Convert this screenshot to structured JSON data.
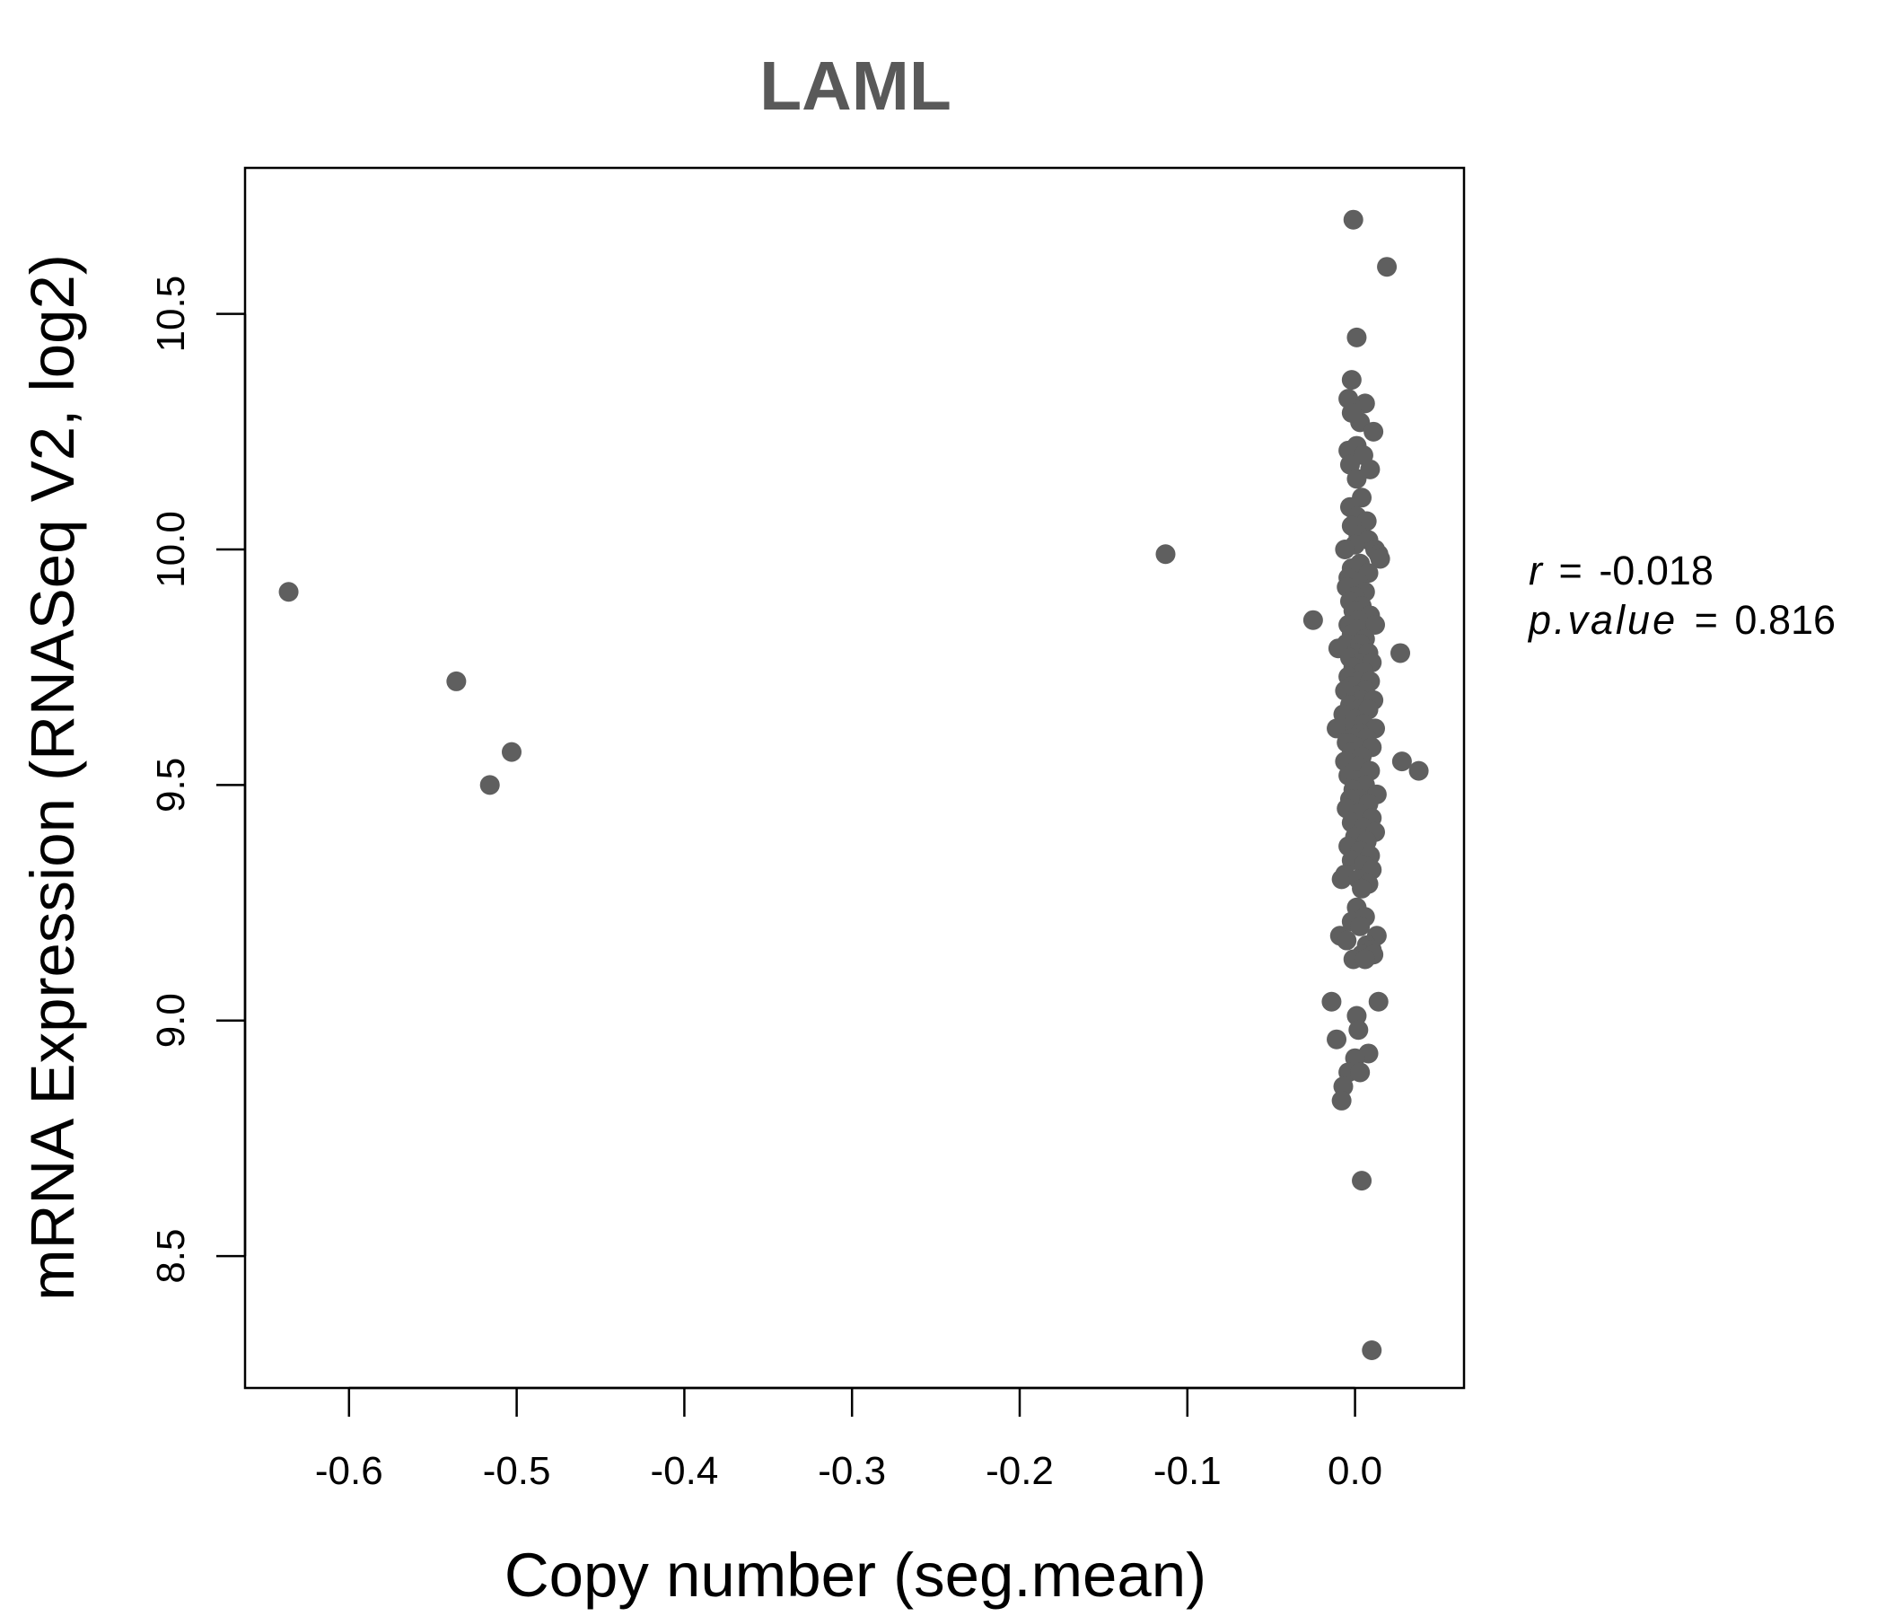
{
  "chart_data": {
    "type": "scatter",
    "title": "LAML",
    "xlabel": "Copy number (seg.mean)",
    "ylabel": "mRNA Expression (RNASeq V2, log2)",
    "xlim": [
      -0.662,
      0.065
    ],
    "ylim": [
      8.22,
      10.81
    ],
    "xticks": [
      -0.6,
      -0.5,
      -0.4,
      -0.3,
      -0.2,
      -0.1,
      0.0
    ],
    "xtick_labels": [
      "-0.6",
      "-0.5",
      "-0.4",
      "-0.3",
      "-0.2",
      "-0.1",
      "0.0"
    ],
    "yticks": [
      8.5,
      9.0,
      9.5,
      10.0,
      10.5
    ],
    "ytick_labels": [
      "8.5",
      "9.0",
      "9.5",
      "10.0",
      "10.5"
    ],
    "grid": false,
    "marker_color": "#5f5f5f",
    "points": [
      {
        "x": -0.636,
        "y": 9.91
      },
      {
        "x": -0.536,
        "y": 9.72
      },
      {
        "x": -0.516,
        "y": 9.5
      },
      {
        "x": -0.503,
        "y": 9.57
      },
      {
        "x": -0.113,
        "y": 9.99
      },
      {
        "x": -0.001,
        "y": 10.7
      },
      {
        "x": 0.019,
        "y": 10.6
      },
      {
        "x": 0.001,
        "y": 10.45
      },
      {
        "x": -0.002,
        "y": 10.36
      },
      {
        "x": -0.004,
        "y": 10.32
      },
      {
        "x": 0.006,
        "y": 10.31
      },
      {
        "x": -0.001,
        "y": 10.3
      },
      {
        "x": 0.003,
        "y": 10.27
      },
      {
        "x": 0.011,
        "y": 10.25
      },
      {
        "x": -0.002,
        "y": 10.29
      },
      {
        "x": 0.001,
        "y": 10.22
      },
      {
        "x": -0.004,
        "y": 10.21
      },
      {
        "x": 0.005,
        "y": 10.2
      },
      {
        "x": -0.003,
        "y": 10.18
      },
      {
        "x": 0.009,
        "y": 10.17
      },
      {
        "x": 0.001,
        "y": 10.15
      },
      {
        "x": 0.004,
        "y": 10.11
      },
      {
        "x": -0.003,
        "y": 10.09
      },
      {
        "x": 0.001,
        "y": 10.07
      },
      {
        "x": 0.007,
        "y": 10.06
      },
      {
        "x": -0.002,
        "y": 10.05
      },
      {
        "x": 0.002,
        "y": 10.03
      },
      {
        "x": 0.008,
        "y": 10.02
      },
      {
        "x": 0.0,
        "y": 10.01
      },
      {
        "x": -0.006,
        "y": 10.0
      },
      {
        "x": 0.012,
        "y": 10.0
      },
      {
        "x": 0.014,
        "y": 9.99
      },
      {
        "x": 0.015,
        "y": 9.98
      },
      {
        "x": 0.003,
        "y": 9.97
      },
      {
        "x": -0.002,
        "y": 9.96
      },
      {
        "x": 0.008,
        "y": 9.95
      },
      {
        "x": -0.004,
        "y": 9.94
      },
      {
        "x": 0.002,
        "y": 9.93
      },
      {
        "x": -0.005,
        "y": 9.92
      },
      {
        "x": 0.006,
        "y": 9.91
      },
      {
        "x": 0.0,
        "y": 9.9
      },
      {
        "x": -0.003,
        "y": 9.89
      },
      {
        "x": 0.004,
        "y": 9.88
      },
      {
        "x": -0.001,
        "y": 9.87
      },
      {
        "x": 0.009,
        "y": 9.86
      },
      {
        "x": -0.025,
        "y": 9.85
      },
      {
        "x": 0.002,
        "y": 9.85
      },
      {
        "x": -0.004,
        "y": 9.84
      },
      {
        "x": 0.012,
        "y": 9.84
      },
      {
        "x": 0.001,
        "y": 9.83
      },
      {
        "x": -0.002,
        "y": 9.82
      },
      {
        "x": 0.006,
        "y": 9.81
      },
      {
        "x": -0.005,
        "y": 9.8
      },
      {
        "x": 0.003,
        "y": 9.8
      },
      {
        "x": -0.01,
        "y": 9.79
      },
      {
        "x": 0.001,
        "y": 9.78
      },
      {
        "x": 0.008,
        "y": 9.78
      },
      {
        "x": 0.027,
        "y": 9.78
      },
      {
        "x": -0.003,
        "y": 9.77
      },
      {
        "x": 0.004,
        "y": 9.76
      },
      {
        "x": 0.01,
        "y": 9.76
      },
      {
        "x": -0.001,
        "y": 9.75
      },
      {
        "x": 0.005,
        "y": 9.74
      },
      {
        "x": -0.004,
        "y": 9.73
      },
      {
        "x": 0.002,
        "y": 9.72
      },
      {
        "x": 0.009,
        "y": 9.72
      },
      {
        "x": -0.002,
        "y": 9.71
      },
      {
        "x": 0.006,
        "y": 9.7
      },
      {
        "x": -0.006,
        "y": 9.7
      },
      {
        "x": 0.001,
        "y": 9.69
      },
      {
        "x": 0.004,
        "y": 9.68
      },
      {
        "x": 0.011,
        "y": 9.68
      },
      {
        "x": -0.003,
        "y": 9.67
      },
      {
        "x": 0.002,
        "y": 9.66
      },
      {
        "x": 0.008,
        "y": 9.66
      },
      {
        "x": -0.007,
        "y": 9.65
      },
      {
        "x": 0.0,
        "y": 9.64
      },
      {
        "x": 0.005,
        "y": 9.63
      },
      {
        "x": -0.004,
        "y": 9.62
      },
      {
        "x": 0.012,
        "y": 9.62
      },
      {
        "x": -0.011,
        "y": 9.62
      },
      {
        "x": 0.003,
        "y": 9.61
      },
      {
        "x": -0.001,
        "y": 9.6
      },
      {
        "x": 0.007,
        "y": 9.6
      },
      {
        "x": -0.005,
        "y": 9.59
      },
      {
        "x": 0.001,
        "y": 9.58
      },
      {
        "x": 0.01,
        "y": 9.58
      },
      {
        "x": -0.002,
        "y": 9.57
      },
      {
        "x": 0.004,
        "y": 9.56
      },
      {
        "x": 0.028,
        "y": 9.55
      },
      {
        "x": -0.006,
        "y": 9.55
      },
      {
        "x": 0.002,
        "y": 9.54
      },
      {
        "x": 0.009,
        "y": 9.53
      },
      {
        "x": 0.038,
        "y": 9.53
      },
      {
        "x": -0.004,
        "y": 9.52
      },
      {
        "x": 0.001,
        "y": 9.51
      },
      {
        "x": 0.006,
        "y": 9.5
      },
      {
        "x": -0.001,
        "y": 9.49
      },
      {
        "x": 0.013,
        "y": 9.48
      },
      {
        "x": 0.003,
        "y": 9.47
      },
      {
        "x": -0.003,
        "y": 9.47
      },
      {
        "x": 0.008,
        "y": 9.46
      },
      {
        "x": -0.005,
        "y": 9.45
      },
      {
        "x": 0.002,
        "y": 9.44
      },
      {
        "x": 0.01,
        "y": 9.43
      },
      {
        "x": -0.002,
        "y": 9.42
      },
      {
        "x": 0.005,
        "y": 9.41
      },
      {
        "x": 0.012,
        "y": 9.4
      },
      {
        "x": 0.0,
        "y": 9.39
      },
      {
        "x": 0.007,
        "y": 9.38
      },
      {
        "x": -0.004,
        "y": 9.37
      },
      {
        "x": 0.003,
        "y": 9.36
      },
      {
        "x": 0.009,
        "y": 9.35
      },
      {
        "x": -0.002,
        "y": 9.34
      },
      {
        "x": 0.005,
        "y": 9.33
      },
      {
        "x": 0.01,
        "y": 9.32
      },
      {
        "x": -0.006,
        "y": 9.31
      },
      {
        "x": -0.008,
        "y": 9.3
      },
      {
        "x": 0.002,
        "y": 9.3
      },
      {
        "x": 0.008,
        "y": 9.29
      },
      {
        "x": 0.004,
        "y": 9.28
      },
      {
        "x": 0.001,
        "y": 9.24
      },
      {
        "x": 0.006,
        "y": 9.22
      },
      {
        "x": -0.002,
        "y": 9.21
      },
      {
        "x": 0.003,
        "y": 9.2
      },
      {
        "x": -0.009,
        "y": 9.18
      },
      {
        "x": 0.013,
        "y": 9.18
      },
      {
        "x": -0.005,
        "y": 9.17
      },
      {
        "x": 0.007,
        "y": 9.16
      },
      {
        "x": 0.01,
        "y": 9.15
      },
      {
        "x": 0.004,
        "y": 9.14
      },
      {
        "x": 0.011,
        "y": 9.14
      },
      {
        "x": -0.001,
        "y": 9.13
      },
      {
        "x": 0.006,
        "y": 9.13
      },
      {
        "x": 0.014,
        "y": 9.04
      },
      {
        "x": -0.014,
        "y": 9.04
      },
      {
        "x": 0.001,
        "y": 9.01
      },
      {
        "x": 0.002,
        "y": 8.98
      },
      {
        "x": -0.011,
        "y": 8.96
      },
      {
        "x": 0.008,
        "y": 8.93
      },
      {
        "x": 0.0,
        "y": 8.92
      },
      {
        "x": -0.004,
        "y": 8.89
      },
      {
        "x": 0.003,
        "y": 8.89
      },
      {
        "x": -0.007,
        "y": 8.86
      },
      {
        "x": -0.008,
        "y": 8.83
      },
      {
        "x": 0.004,
        "y": 8.66
      },
      {
        "x": 0.01,
        "y": 8.3
      }
    ]
  },
  "stats": {
    "r_label": "r",
    "eq": "=",
    "r_value": "-0.018",
    "p_label": "p.value",
    "p_value": "0.816"
  }
}
